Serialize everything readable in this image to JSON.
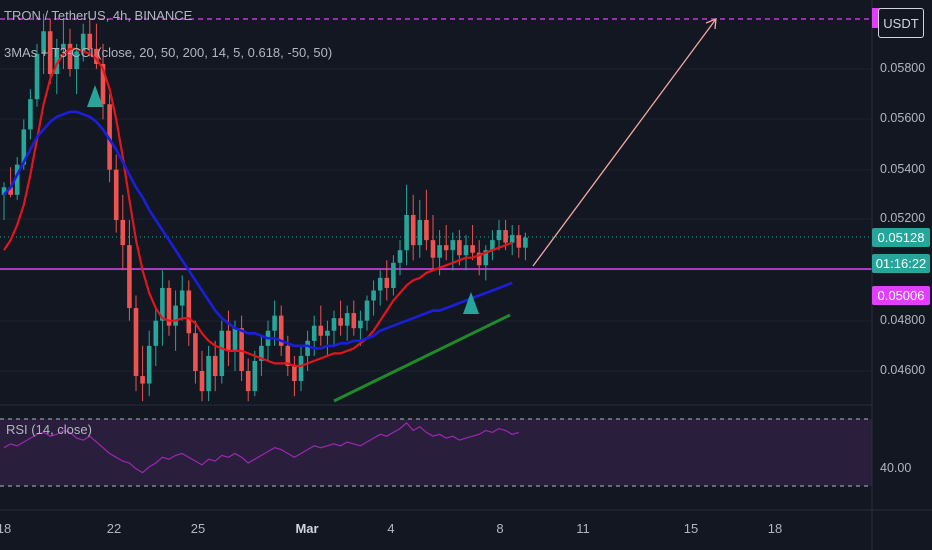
{
  "header": {
    "title": "TRON / TetherUS, 4h, BINANCE",
    "indicator": "3MAs + T3-CCI (close, 20, 50, 200, 14, 5, 0.618, -50, 50)",
    "currency_button": "USDT"
  },
  "rsi": {
    "label": "RSI (14, close)",
    "level_label": "40.00"
  },
  "price_tags": {
    "last_price": "0.05128",
    "countdown": "01:16:22",
    "level": "0.05006"
  },
  "colors": {
    "background": "#131722",
    "up_candle": "#26a69a",
    "down_candle": "#ef5350",
    "ma_fast": "#e0161c",
    "ma_slow": "#1b1fdc",
    "trendline": "#1e8a2a",
    "level_line": "#e040fb",
    "projection": "#f4a7a4",
    "rsi_line": "#9c27b0",
    "rsi_band": "#2a1e3d",
    "signal": "#26a69a",
    "last_price_tag": "#26a69a"
  },
  "chart_data": {
    "type": "candlestick",
    "symbol": "TRX/USDT",
    "ylim": [
      0.045,
      0.0598
    ],
    "y_ticks": [
      "0.05800",
      "0.05600",
      "0.05400",
      "0.05200",
      "0.04800",
      "0.04600"
    ],
    "x_ticks": [
      "18",
      "22",
      "25",
      "Mar",
      "4",
      "8",
      "11",
      "15",
      "18"
    ],
    "last_price": 0.05128,
    "level_price": 0.05006,
    "candles": [
      [
        0.053,
        0.0535,
        0.052,
        0.0533
      ],
      [
        0.0533,
        0.0541,
        0.0529,
        0.053
      ],
      [
        0.053,
        0.0545,
        0.0528,
        0.0542
      ],
      [
        0.0542,
        0.056,
        0.054,
        0.0556
      ],
      [
        0.0556,
        0.0572,
        0.0552,
        0.0568
      ],
      [
        0.0568,
        0.059,
        0.0565,
        0.0586
      ],
      [
        0.0586,
        0.0602,
        0.0578,
        0.0595
      ],
      [
        0.0595,
        0.06,
        0.0574,
        0.0578
      ],
      [
        0.0578,
        0.0592,
        0.057,
        0.0588
      ],
      [
        0.0588,
        0.06,
        0.058,
        0.059
      ],
      [
        0.059,
        0.0596,
        0.0577,
        0.058
      ],
      [
        0.058,
        0.059,
        0.057,
        0.0587
      ],
      [
        0.0587,
        0.0598,
        0.0583,
        0.0594
      ],
      [
        0.0594,
        0.06,
        0.0585,
        0.0588
      ],
      [
        0.0588,
        0.0598,
        0.058,
        0.0582
      ],
      [
        0.0582,
        0.059,
        0.056,
        0.0566
      ],
      [
        0.0566,
        0.057,
        0.0535,
        0.054
      ],
      [
        0.054,
        0.0546,
        0.0515,
        0.052
      ],
      [
        0.052,
        0.053,
        0.05,
        0.051
      ],
      [
        0.051,
        0.052,
        0.048,
        0.0485
      ],
      [
        0.0485,
        0.049,
        0.0452,
        0.0458
      ],
      [
        0.0458,
        0.047,
        0.0448,
        0.0455
      ],
      [
        0.0455,
        0.0476,
        0.045,
        0.047
      ],
      [
        0.047,
        0.0485,
        0.0462,
        0.048
      ],
      [
        0.048,
        0.05,
        0.047,
        0.0493
      ],
      [
        0.0493,
        0.0496,
        0.0474,
        0.0478
      ],
      [
        0.0478,
        0.0492,
        0.0468,
        0.0486
      ],
      [
        0.0486,
        0.0498,
        0.048,
        0.0492
      ],
      [
        0.0492,
        0.0496,
        0.047,
        0.0475
      ],
      [
        0.0475,
        0.048,
        0.0455,
        0.046
      ],
      [
        0.046,
        0.0468,
        0.0448,
        0.0452
      ],
      [
        0.0452,
        0.047,
        0.0448,
        0.0466
      ],
      [
        0.0466,
        0.0472,
        0.0452,
        0.0458
      ],
      [
        0.0458,
        0.048,
        0.0455,
        0.0476
      ],
      [
        0.0476,
        0.0484,
        0.0462,
        0.0468
      ],
      [
        0.0468,
        0.048,
        0.046,
        0.0477
      ],
      [
        0.0477,
        0.0482,
        0.0456,
        0.046
      ],
      [
        0.046,
        0.0465,
        0.0448,
        0.0452
      ],
      [
        0.0452,
        0.0468,
        0.045,
        0.0464
      ],
      [
        0.0464,
        0.0474,
        0.0458,
        0.047
      ],
      [
        0.047,
        0.048,
        0.0464,
        0.0476
      ],
      [
        0.0476,
        0.0488,
        0.047,
        0.0482
      ],
      [
        0.0482,
        0.0486,
        0.0466,
        0.047
      ],
      [
        0.047,
        0.0474,
        0.0458,
        0.0462
      ],
      [
        0.0462,
        0.0466,
        0.045,
        0.0456
      ],
      [
        0.0456,
        0.047,
        0.0452,
        0.0466
      ],
      [
        0.0466,
        0.0476,
        0.046,
        0.0472
      ],
      [
        0.0472,
        0.0482,
        0.0466,
        0.0478
      ],
      [
        0.0478,
        0.0486,
        0.047,
        0.0474
      ],
      [
        0.0474,
        0.048,
        0.0466,
        0.0476
      ],
      [
        0.0476,
        0.0484,
        0.047,
        0.0481
      ],
      [
        0.0481,
        0.0488,
        0.0474,
        0.0478
      ],
      [
        0.0478,
        0.0486,
        0.0472,
        0.0483
      ],
      [
        0.0483,
        0.0488,
        0.0474,
        0.0477
      ],
      [
        0.0477,
        0.0484,
        0.047,
        0.048
      ],
      [
        0.048,
        0.049,
        0.0476,
        0.0488
      ],
      [
        0.0488,
        0.0496,
        0.0482,
        0.0492
      ],
      [
        0.0492,
        0.05,
        0.0486,
        0.0497
      ],
      [
        0.0497,
        0.0504,
        0.0488,
        0.0493
      ],
      [
        0.0493,
        0.0506,
        0.049,
        0.0503
      ],
      [
        0.0503,
        0.0512,
        0.0498,
        0.0508
      ],
      [
        0.0508,
        0.0534,
        0.0502,
        0.0522
      ],
      [
        0.0522,
        0.053,
        0.0504,
        0.051
      ],
      [
        0.051,
        0.0528,
        0.0505,
        0.052
      ],
      [
        0.052,
        0.0532,
        0.0508,
        0.0512
      ],
      [
        0.0512,
        0.0522,
        0.05,
        0.0505
      ],
      [
        0.0505,
        0.0516,
        0.0498,
        0.051
      ],
      [
        0.051,
        0.0518,
        0.0504,
        0.0508
      ],
      [
        0.0508,
        0.0515,
        0.05,
        0.0512
      ],
      [
        0.0512,
        0.0516,
        0.0502,
        0.0506
      ],
      [
        0.0506,
        0.0514,
        0.05,
        0.051
      ],
      [
        0.051,
        0.0518,
        0.0504,
        0.0507
      ],
      [
        0.0507,
        0.0512,
        0.0498,
        0.0502
      ],
      [
        0.0502,
        0.051,
        0.0496,
        0.0508
      ],
      [
        0.0508,
        0.0516,
        0.0504,
        0.0512
      ],
      [
        0.0512,
        0.052,
        0.0508,
        0.0516
      ],
      [
        0.0516,
        0.052,
        0.0508,
        0.0511
      ],
      [
        0.0511,
        0.0518,
        0.0506,
        0.0514
      ],
      [
        0.0514,
        0.0518,
        0.0505,
        0.0509
      ],
      [
        0.0509,
        0.0515,
        0.0504,
        0.0513
      ]
    ],
    "ma_fast": [
      0.0508,
      0.0512,
      0.0518,
      0.0526,
      0.0538,
      0.0552,
      0.0566,
      0.0576,
      0.0582,
      0.0586,
      0.0588,
      0.0588,
      0.0587,
      0.0586,
      0.0584,
      0.058,
      0.0572,
      0.056,
      0.0545,
      0.0528,
      0.0512,
      0.05,
      0.0491,
      0.0485,
      0.0481,
      0.048,
      0.048,
      0.0481,
      0.0481,
      0.0479,
      0.0475,
      0.0472,
      0.047,
      0.0469,
      0.0468,
      0.0468,
      0.0468,
      0.0467,
      0.0466,
      0.0465,
      0.0464,
      0.0463,
      0.0463,
      0.0463,
      0.0462,
      0.0462,
      0.0463,
      0.0464,
      0.0465,
      0.0466,
      0.0467,
      0.0467,
      0.0468,
      0.0469,
      0.0471,
      0.0473,
      0.0476,
      0.048,
      0.0484,
      0.0488,
      0.0491,
      0.0494,
      0.0496,
      0.0497,
      0.0499,
      0.05,
      0.0501,
      0.0502,
      0.0503,
      0.0504,
      0.0505,
      0.0505,
      0.0506,
      0.0507,
      0.0508,
      0.0509,
      0.051,
      0.0511
    ],
    "ma_slow": [
      0.053,
      0.0533,
      0.0538,
      0.0543,
      0.0548,
      0.0553,
      0.0556,
      0.0559,
      0.0561,
      0.0562,
      0.0563,
      0.0563,
      0.0562,
      0.0561,
      0.0559,
      0.0556,
      0.0552,
      0.0548,
      0.0543,
      0.0538,
      0.0533,
      0.0529,
      0.0524,
      0.052,
      0.0516,
      0.0512,
      0.0508,
      0.0504,
      0.05,
      0.0496,
      0.0492,
      0.0488,
      0.0484,
      0.0481,
      0.0479,
      0.0477,
      0.0476,
      0.0475,
      0.0475,
      0.0474,
      0.0473,
      0.0473,
      0.0472,
      0.0471,
      0.047,
      0.047,
      0.047,
      0.0469,
      0.0469,
      0.047,
      0.047,
      0.0471,
      0.0471,
      0.0472,
      0.0472,
      0.0473,
      0.0474,
      0.0476,
      0.0477,
      0.0478,
      0.0479,
      0.048,
      0.0481,
      0.0482,
      0.0483,
      0.0484,
      0.0484,
      0.0485,
      0.0486,
      0.0487,
      0.0488,
      0.0489,
      0.049,
      0.0491,
      0.0492,
      0.0493,
      0.0494,
      0.0495
    ],
    "rsi": [
      55,
      57,
      56,
      58,
      60,
      62,
      63,
      61,
      62,
      64,
      63,
      60,
      59,
      61,
      58,
      55,
      52,
      50,
      48,
      47,
      44,
      42,
      45,
      47,
      50,
      49,
      51,
      52,
      50,
      48,
      46,
      49,
      48,
      51,
      50,
      52,
      50,
      47,
      49,
      51,
      53,
      55,
      54,
      52,
      50,
      52,
      54,
      56,
      55,
      56,
      57,
      56,
      58,
      57,
      56,
      58,
      60,
      62,
      61,
      63,
      65,
      68,
      64,
      66,
      63,
      61,
      62,
      60,
      61,
      59,
      60,
      61,
      62,
      64,
      63,
      65,
      64,
      62,
      63
    ]
  }
}
